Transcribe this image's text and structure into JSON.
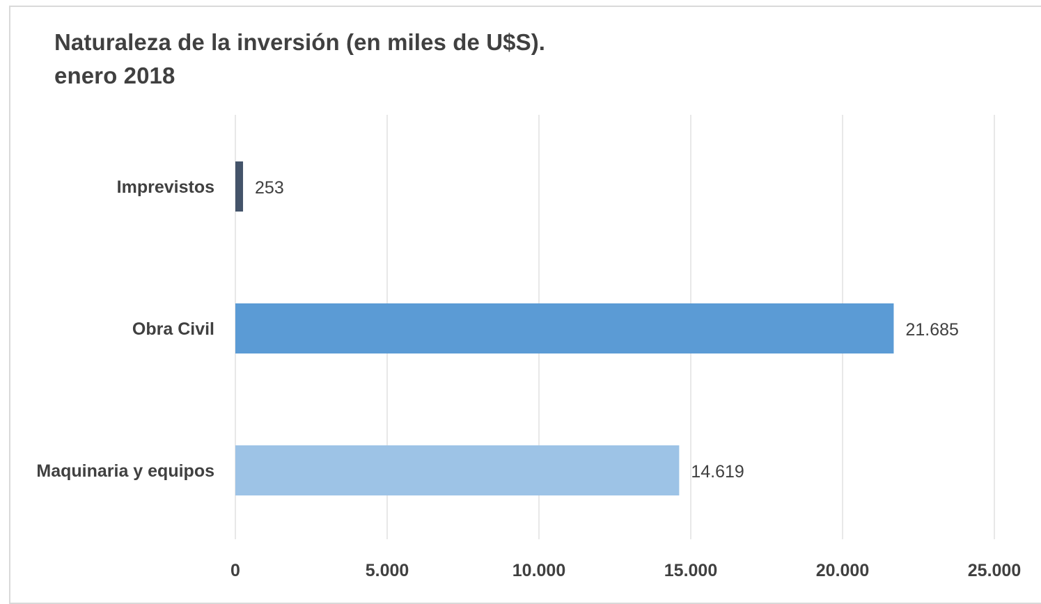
{
  "chart_data": {
    "type": "bar",
    "orientation": "horizontal",
    "title": "Naturaleza de la inversión (en miles de U$S).",
    "subtitle": "enero 2018",
    "categories": [
      "Imprevistos",
      "Obra Civil",
      "Maquinaria y equipos"
    ],
    "values": [
      253,
      21685,
      14619
    ],
    "data_labels": [
      "253",
      "21.685",
      "14.619"
    ],
    "bar_colors": [
      "#44546a",
      "#5b9bd5",
      "#9dc3e6"
    ],
    "xlim": [
      0,
      25000
    ],
    "xticks": [
      0,
      5000,
      10000,
      15000,
      20000,
      25000
    ],
    "xtick_labels": [
      "0",
      "5.000",
      "10.000",
      "15.000",
      "20.000",
      "25.000"
    ],
    "xlabel": "",
    "ylabel": "",
    "grid": "vertical",
    "legend": "none"
  }
}
